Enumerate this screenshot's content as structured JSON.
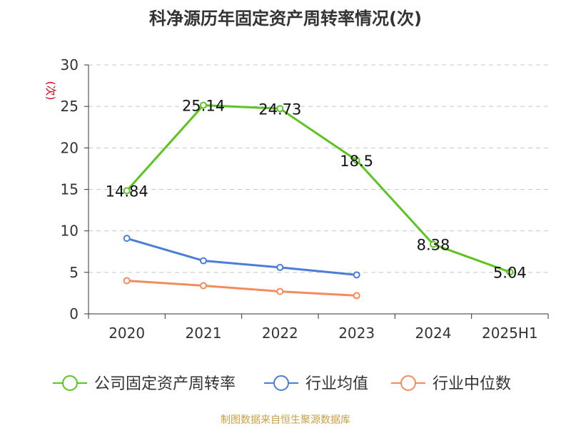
{
  "chart_data": {
    "type": "line",
    "title": "科净源历年固定资产周转率情况(次)",
    "ylabel": "(次)",
    "xlabel": "",
    "categories": [
      "2020",
      "2021",
      "2022",
      "2023",
      "2024",
      "2025H1"
    ],
    "yticks": [
      "0",
      "5",
      "10",
      "15",
      "20",
      "25",
      "30"
    ],
    "ylim": [
      0,
      30
    ],
    "grid": "horizontal-dashed",
    "legend_position": "bottom",
    "series": [
      {
        "name": "公司固定资产周转率",
        "color": "#5cc420",
        "values": [
          14.84,
          25.14,
          24.73,
          18.5,
          8.38,
          5.04
        ],
        "labels": [
          "14.84",
          "25.14",
          "24.73",
          "18.5",
          "8.38",
          "5.04"
        ]
      },
      {
        "name": "行业均值",
        "color": "#4a7ed8",
        "values": [
          9.1,
          6.4,
          5.6,
          4.7,
          null,
          null
        ]
      },
      {
        "name": "行业中位数",
        "color": "#f48c5a",
        "values": [
          4.0,
          3.4,
          2.7,
          2.2,
          null,
          null
        ]
      }
    ]
  },
  "ylabel_color": "#d0021b",
  "source": "制图数据来自恒生聚源数据库"
}
